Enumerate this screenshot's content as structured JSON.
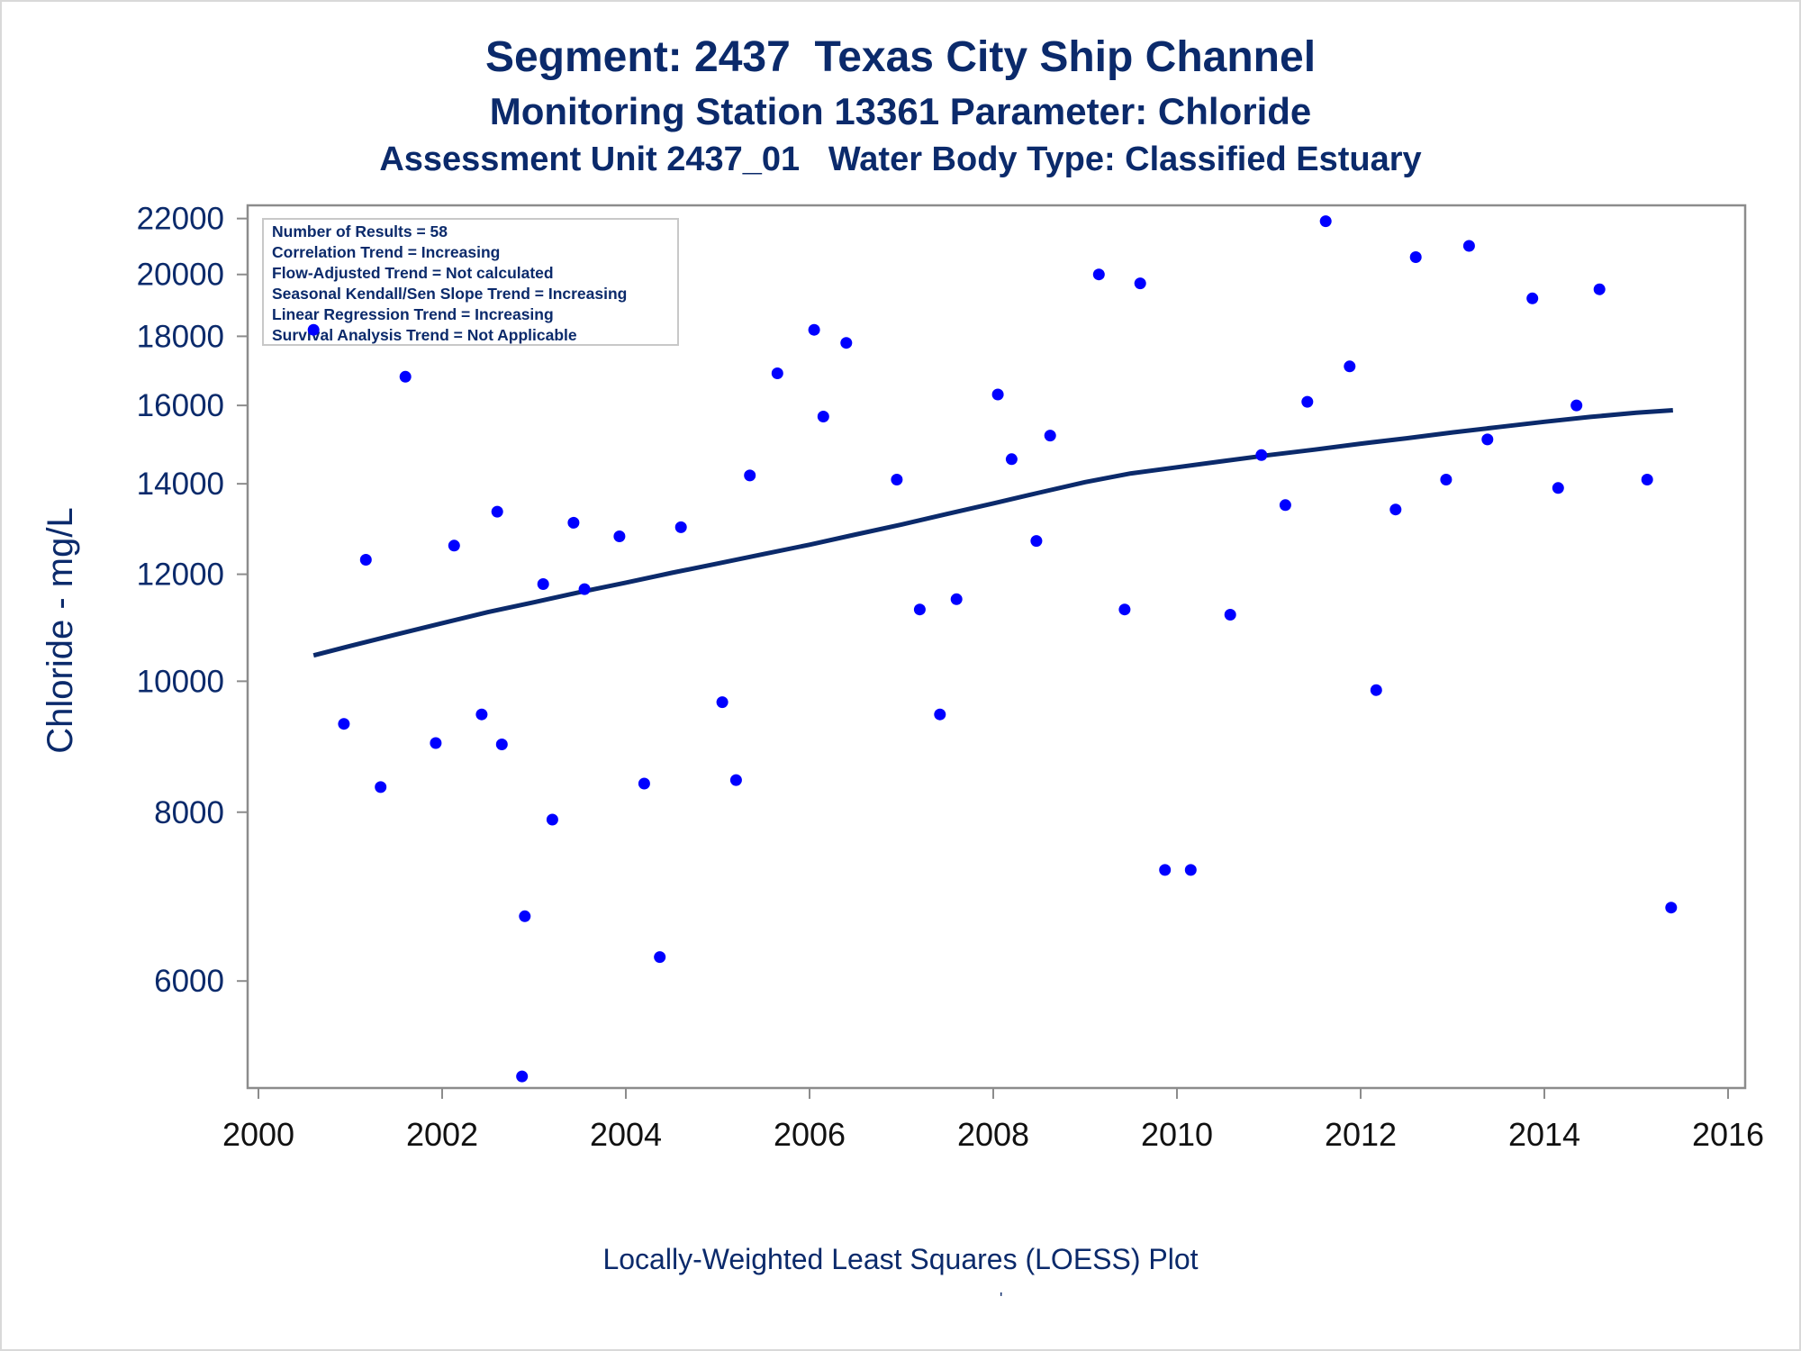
{
  "title": "Segment: 2437  Texas City Ship Channel",
  "subtitle": "Monitoring Station 13361 Parameter: Chloride",
  "subtitle2": "Assessment Unit 2437_01   Water Body Type: Classified Estuary",
  "footnote": "Locally-Weighted Least Squares (LOESS) Plot",
  "footnote_mark": "'",
  "colors": {
    "text": "#0b2a6b",
    "points": "#0000ff",
    "line": "#0b2a6b",
    "axis": "#8c8c8c"
  },
  "chart_data": {
    "type": "scatter",
    "title": "Segment: 2437  Texas City Ship Channel",
    "xlabel": "",
    "ylabel": "Chloride - mg/L",
    "y_scale": "log",
    "xlim": [
      2000,
      2016
    ],
    "ylim": [
      5000,
      22500
    ],
    "x_ticks": [
      2000,
      2002,
      2004,
      2006,
      2008,
      2010,
      2012,
      2014,
      2016
    ],
    "y_ticks": [
      6000,
      8000,
      10000,
      12000,
      14000,
      16000,
      18000,
      20000,
      22000
    ],
    "grid": false,
    "legend_box": {
      "placement": "top-left",
      "lines": [
        "Number of Results = 58",
        "Correlation Trend = Increasing",
        "Flow-Adjusted Trend = Not calculated",
        "Seasonal Kendall/Sen Slope Trend = Increasing",
        "Linear Regression Trend = Increasing",
        "Survival Analysis Trend = Not Applicable"
      ]
    },
    "series": [
      {
        "type": "scatter",
        "points": [
          [
            2000.6,
            18200
          ],
          [
            2000.93,
            9300
          ],
          [
            2001.17,
            12300
          ],
          [
            2001.33,
            8350
          ],
          [
            2001.6,
            16800
          ],
          [
            2001.93,
            9000
          ],
          [
            2002.13,
            12600
          ],
          [
            2002.43,
            9450
          ],
          [
            2002.6,
            13350
          ],
          [
            2002.65,
            8980
          ],
          [
            2002.87,
            5100
          ],
          [
            2002.9,
            6700
          ],
          [
            2003.1,
            11800
          ],
          [
            2003.2,
            7900
          ],
          [
            2003.43,
            13100
          ],
          [
            2003.55,
            11700
          ],
          [
            2003.93,
            12800
          ],
          [
            2004.2,
            8400
          ],
          [
            2004.37,
            6250
          ],
          [
            2004.6,
            13000
          ],
          [
            2005.05,
            9650
          ],
          [
            2005.2,
            8450
          ],
          [
            2005.35,
            14200
          ],
          [
            2005.65,
            16900
          ],
          [
            2006.05,
            18200
          ],
          [
            2006.15,
            15700
          ],
          [
            2006.4,
            17800
          ],
          [
            2006.95,
            14100
          ],
          [
            2007.2,
            11300
          ],
          [
            2007.42,
            9450
          ],
          [
            2007.6,
            11500
          ],
          [
            2008.05,
            16300
          ],
          [
            2008.2,
            14600
          ],
          [
            2008.47,
            12700
          ],
          [
            2008.62,
            15200
          ],
          [
            2009.15,
            20000
          ],
          [
            2009.43,
            11300
          ],
          [
            2009.6,
            19700
          ],
          [
            2009.87,
            7250
          ],
          [
            2010.15,
            7250
          ],
          [
            2010.58,
            11200
          ],
          [
            2010.92,
            14700
          ],
          [
            2011.18,
            13500
          ],
          [
            2011.42,
            16100
          ],
          [
            2011.62,
            21900
          ],
          [
            2011.88,
            17100
          ],
          [
            2012.17,
            9850
          ],
          [
            2012.38,
            13400
          ],
          [
            2012.6,
            20600
          ],
          [
            2012.93,
            14100
          ],
          [
            2013.18,
            21000
          ],
          [
            2013.38,
            15100
          ],
          [
            2013.87,
            19200
          ],
          [
            2014.15,
            13900
          ],
          [
            2014.35,
            16000
          ],
          [
            2014.6,
            19500
          ],
          [
            2015.12,
            14100
          ],
          [
            2015.38,
            6800
          ]
        ]
      },
      {
        "type": "line",
        "name": "LOESS",
        "points": [
          [
            2000.6,
            10450
          ],
          [
            2001,
            10620
          ],
          [
            2001.5,
            10830
          ],
          [
            2002,
            11040
          ],
          [
            2002.5,
            11250
          ],
          [
            2003,
            11440
          ],
          [
            2003.5,
            11640
          ],
          [
            2004,
            11830
          ],
          [
            2004.5,
            12030
          ],
          [
            2005,
            12220
          ],
          [
            2005.5,
            12420
          ],
          [
            2006,
            12620
          ],
          [
            2006.5,
            12840
          ],
          [
            2007,
            13060
          ],
          [
            2007.5,
            13300
          ],
          [
            2008,
            13540
          ],
          [
            2008.5,
            13790
          ],
          [
            2009,
            14040
          ],
          [
            2009.5,
            14250
          ],
          [
            2010,
            14400
          ],
          [
            2010.5,
            14550
          ],
          [
            2011,
            14700
          ],
          [
            2011.5,
            14840
          ],
          [
            2012,
            14990
          ],
          [
            2012.5,
            15130
          ],
          [
            2013,
            15280
          ],
          [
            2013.5,
            15420
          ],
          [
            2014,
            15560
          ],
          [
            2014.5,
            15690
          ],
          [
            2015,
            15800
          ],
          [
            2015.4,
            15870
          ]
        ]
      }
    ]
  }
}
